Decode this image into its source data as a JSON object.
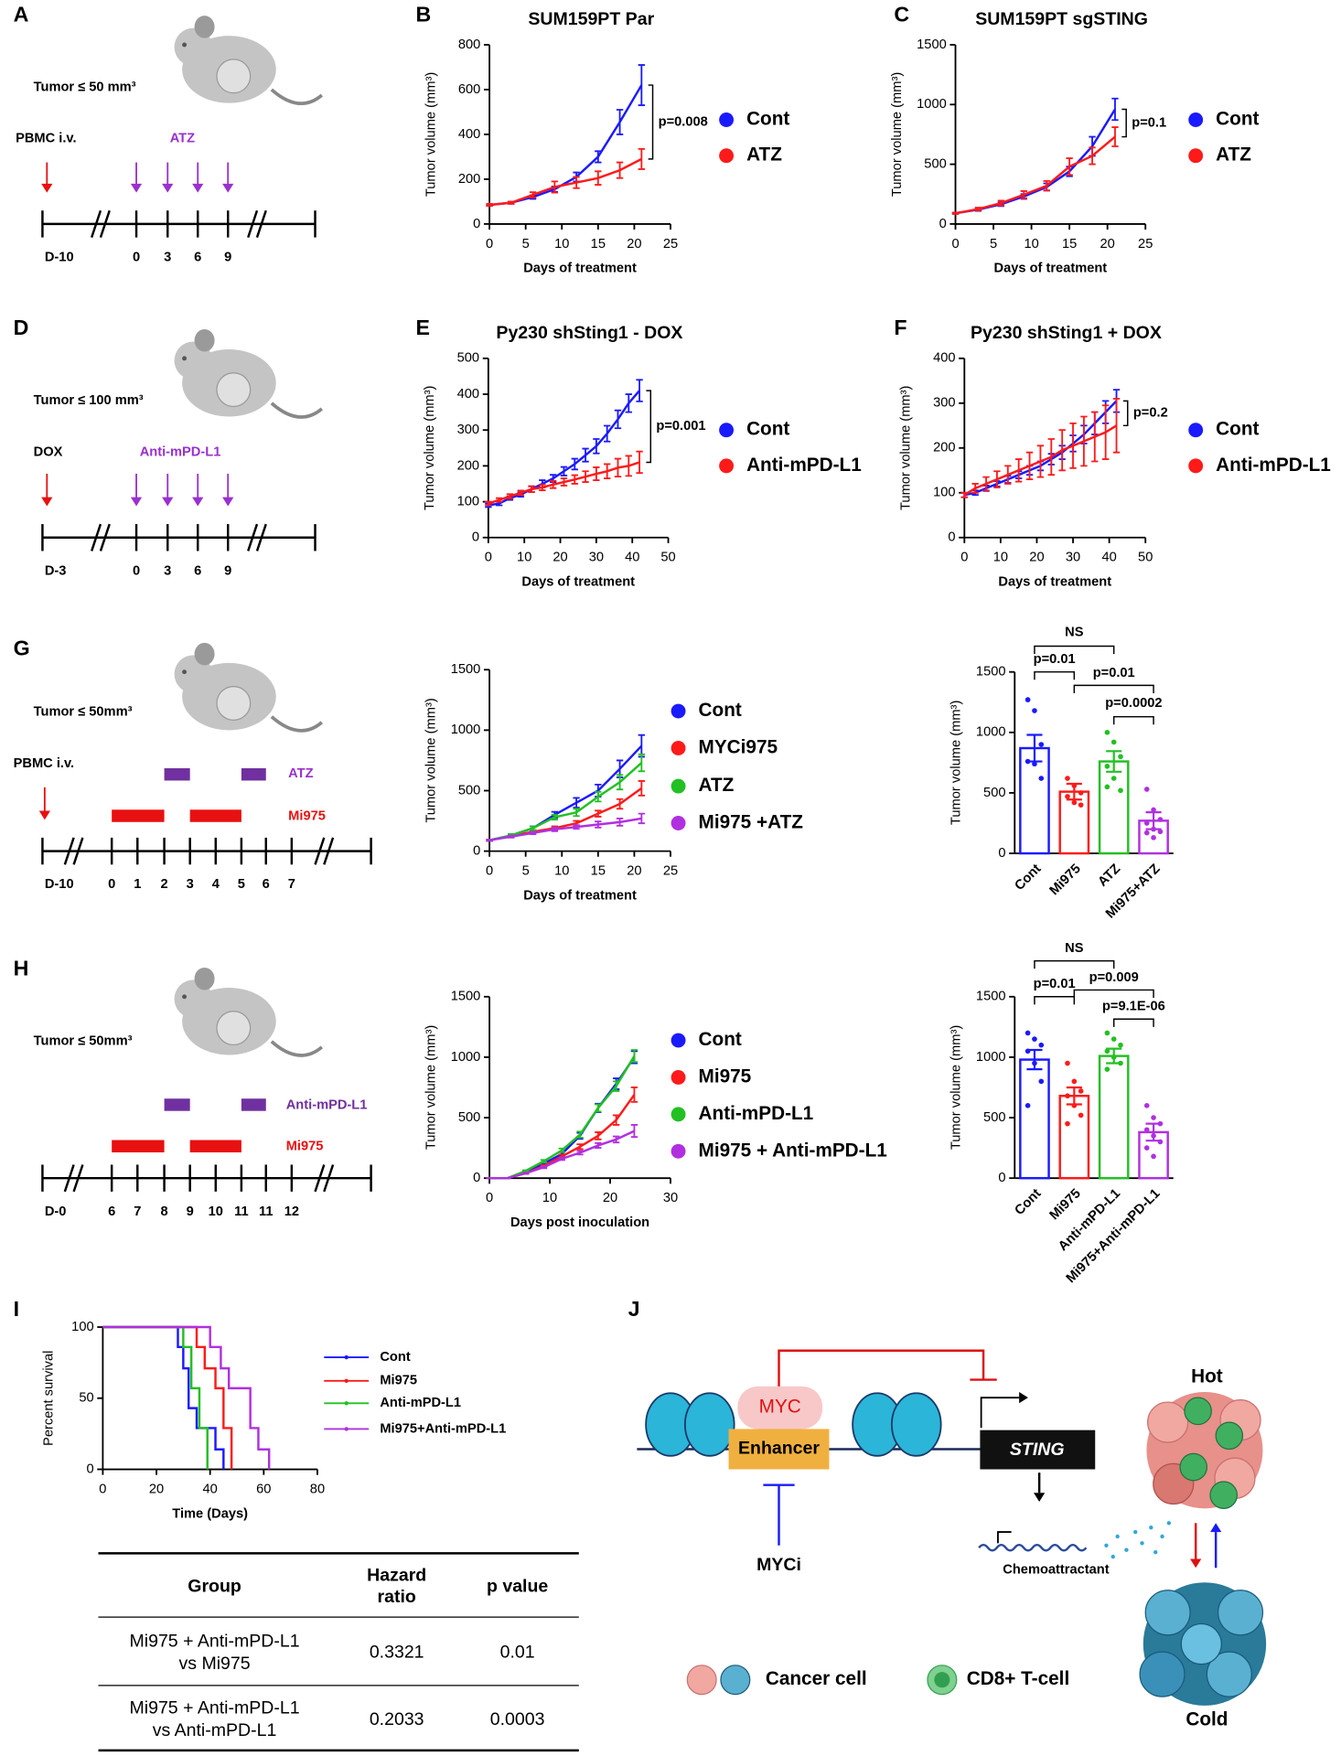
{
  "panels": [
    "A",
    "B",
    "C",
    "D",
    "E",
    "F",
    "G",
    "H",
    "I",
    "J"
  ],
  "timelines": [
    {
      "tumor": "Tumor ≤ 50 mm³",
      "labels": [
        "PBMC i.v.",
        "ATZ"
      ],
      "ticks": [
        "D-10",
        "0",
        "3",
        "6",
        "9"
      ]
    },
    {
      "tumor": "Tumor ≤ 100 mm³",
      "labels": [
        "DOX",
        "Anti-mPD-L1"
      ],
      "ticks": [
        "D-3",
        "0",
        "3",
        "6",
        "9"
      ]
    },
    {
      "tumor": "Tumor ≤ 50mm³",
      "labels": [
        "PBMC i.v.",
        "ATZ",
        "Mi975"
      ],
      "ticks": [
        "D-10",
        "0",
        "1",
        "2",
        "3",
        "4",
        "5",
        "6",
        "7"
      ]
    },
    {
      "tumor": "Tumor ≤ 50mm³",
      "labels": [
        "Anti-mPD-L1",
        "Mi975"
      ],
      "ticks": [
        "D-0",
        "6",
        "7",
        "8",
        "9",
        "10",
        "11",
        "11",
        "12"
      ]
    }
  ],
  "chart_data": [
    {
      "type": "line",
      "title": "SUM159PT Par",
      "x_label": "Days of treatment",
      "y_label": "Tumor volume (mm³)",
      "x": [
        0,
        3,
        6,
        9,
        12,
        15,
        18,
        21
      ],
      "xlim": [
        0,
        25
      ],
      "xticks": [
        0,
        5,
        10,
        15,
        20,
        25
      ],
      "ylim": [
        0,
        800
      ],
      "yticks": [
        0,
        200,
        400,
        600,
        800
      ],
      "series": [
        {
          "name": "Cont",
          "color": "#1a1aff",
          "values": [
            85,
            95,
            120,
            155,
            210,
            300,
            455,
            620
          ],
          "errors": [
            4,
            5,
            8,
            12,
            20,
            25,
            55,
            90
          ]
        },
        {
          "name": "ATZ",
          "color": "#ff1a1a",
          "values": [
            85,
            95,
            130,
            165,
            185,
            205,
            240,
            290
          ],
          "errors": [
            4,
            5,
            12,
            25,
            25,
            30,
            35,
            45
          ]
        }
      ],
      "annotations": [
        "p=0.008"
      ]
    },
    {
      "type": "line",
      "title": "SUM159PT sgSTING",
      "x_label": "Days of treatment",
      "y_label": "Tumor volume (mm³)",
      "x": [
        0,
        3,
        6,
        9,
        12,
        15,
        18,
        21
      ],
      "xlim": [
        0,
        25
      ],
      "xticks": [
        0,
        5,
        10,
        15,
        20,
        25
      ],
      "ylim": [
        0,
        1500
      ],
      "yticks": [
        0,
        500,
        1000,
        1500
      ],
      "series": [
        {
          "name": "Cont",
          "color": "#1a1aff",
          "values": [
            90,
            120,
            165,
            230,
            310,
            440,
            650,
            960
          ],
          "errors": [
            5,
            10,
            15,
            20,
            30,
            40,
            80,
            90
          ]
        },
        {
          "name": "ATZ",
          "color": "#ff1a1a",
          "values": [
            90,
            125,
            175,
            245,
            320,
            480,
            570,
            730
          ],
          "errors": [
            5,
            12,
            20,
            30,
            40,
            70,
            70,
            80
          ]
        }
      ],
      "annotations": [
        "p=0.1"
      ]
    },
    {
      "type": "line",
      "title": "Py230 shSting1 - DOX",
      "x_label": "Days of treatment",
      "y_label": "Tumor volume (mm³)",
      "x": [
        0,
        3,
        6,
        9,
        12,
        15,
        18,
        21,
        24,
        27,
        30,
        33,
        36,
        39,
        42
      ],
      "xlim": [
        0,
        50
      ],
      "xticks": [
        0,
        10,
        20,
        30,
        40,
        50
      ],
      "ylim": [
        0,
        500
      ],
      "yticks": [
        0,
        100,
        200,
        300,
        400,
        500
      ],
      "series": [
        {
          "name": "Cont",
          "color": "#1a1aff",
          "values": [
            90,
            95,
            110,
            120,
            135,
            150,
            165,
            185,
            205,
            230,
            255,
            290,
            330,
            375,
            410
          ],
          "errors": [
            5,
            5,
            5,
            6,
            8,
            10,
            10,
            12,
            15,
            18,
            20,
            22,
            25,
            25,
            30
          ]
        },
        {
          "name": "Anti-mPD-L1",
          "color": "#ff1a1a",
          "values": [
            95,
            105,
            115,
            125,
            135,
            140,
            148,
            155,
            162,
            170,
            178,
            185,
            195,
            200,
            210
          ],
          "errors": [
            5,
            5,
            6,
            6,
            8,
            8,
            10,
            10,
            12,
            15,
            18,
            20,
            25,
            28,
            30
          ]
        }
      ],
      "annotations": [
        "p=0.001"
      ]
    },
    {
      "type": "line",
      "title": "Py230 shSting1 + DOX",
      "x_label": "Days of treatment",
      "y_label": "Tumor volume (mm³)",
      "x": [
        0,
        3,
        6,
        9,
        12,
        15,
        18,
        21,
        24,
        27,
        30,
        33,
        36,
        39,
        42
      ],
      "xlim": [
        0,
        50
      ],
      "xticks": [
        0,
        10,
        20,
        30,
        40,
        50
      ],
      "ylim": [
        0,
        400
      ],
      "yticks": [
        0,
        100,
        200,
        300,
        400
      ],
      "series": [
        {
          "name": "Cont",
          "color": "#1a1aff",
          "values": [
            95,
            100,
            110,
            120,
            130,
            140,
            150,
            160,
            175,
            190,
            210,
            230,
            255,
            280,
            305
          ],
          "errors": [
            5,
            5,
            6,
            6,
            8,
            8,
            10,
            10,
            12,
            15,
            18,
            20,
            25,
            25,
            25
          ]
        },
        {
          "name": "Anti-mPD-L1",
          "color": "#ff1a1a",
          "values": [
            95,
            110,
            120,
            130,
            140,
            150,
            160,
            170,
            180,
            195,
            205,
            215,
            225,
            235,
            250
          ],
          "errors": [
            5,
            10,
            15,
            18,
            20,
            25,
            30,
            35,
            40,
            45,
            50,
            55,
            55,
            60,
            60
          ]
        }
      ],
      "annotations": [
        "p=0.2"
      ]
    },
    {
      "type": "line",
      "x_label": "Days of treatment",
      "y_label": "Tumor volume (mm³)",
      "x": [
        0,
        3,
        6,
        9,
        12,
        15,
        18,
        21
      ],
      "xlim": [
        0,
        25
      ],
      "xticks": [
        0,
        5,
        10,
        15,
        20,
        25
      ],
      "ylim": [
        0,
        1500
      ],
      "yticks": [
        0,
        500,
        1000,
        1500
      ],
      "series": [
        {
          "name": "Cont",
          "color": "#1a1aff",
          "values": [
            90,
            130,
            190,
            300,
            400,
            500,
            680,
            870
          ],
          "errors": [
            5,
            10,
            15,
            25,
            40,
            50,
            70,
            90
          ]
        },
        {
          "name": "MYCi975",
          "color": "#ff1a1a",
          "values": [
            90,
            125,
            160,
            190,
            230,
            310,
            390,
            520
          ],
          "errors": [
            5,
            8,
            10,
            15,
            20,
            25,
            40,
            60
          ]
        },
        {
          "name": "ATZ",
          "color": "#22c022",
          "values": [
            90,
            130,
            190,
            280,
            320,
            450,
            570,
            730
          ],
          "errors": [
            5,
            10,
            15,
            20,
            30,
            40,
            60,
            70
          ]
        },
        {
          "name": "Mi975 +ATZ",
          "color": "#b030e0",
          "values": [
            90,
            120,
            150,
            180,
            200,
            220,
            240,
            270
          ],
          "errors": [
            5,
            8,
            10,
            15,
            15,
            25,
            30,
            40
          ]
        }
      ]
    },
    {
      "type": "bar",
      "y_label": "Tumor volume (mm³)",
      "categories": [
        "Cont",
        "Mi975",
        "ATZ",
        "Mi975+ATZ"
      ],
      "colors": [
        "#1a1aff",
        "#ff1a1a",
        "#22c022",
        "#b030e0"
      ],
      "values": [
        870,
        510,
        760,
        270
      ],
      "errors": [
        110,
        65,
        85,
        70
      ],
      "points": [
        [
          1270,
          1180,
          900,
          760,
          740,
          620
        ],
        [
          620,
          560,
          500,
          470,
          420,
          400
        ],
        [
          1000,
          920,
          800,
          720,
          620,
          520,
          550
        ],
        [
          530,
          360,
          280,
          250,
          200,
          180,
          170,
          130
        ]
      ],
      "ylim": [
        0,
        1500
      ],
      "yticks": [
        0,
        500,
        1000,
        1500
      ],
      "annotations": [
        "NS",
        "p=0.01",
        "p=0.01",
        "p=0.0002"
      ]
    },
    {
      "type": "line",
      "x_label": "Days post inoculation",
      "y_label": "Tumor volume (mm³)",
      "x": [
        0,
        3,
        6,
        9,
        12,
        15,
        18,
        21,
        24
      ],
      "xlim": [
        0,
        30
      ],
      "xticks": [
        0,
        10,
        20,
        30
      ],
      "ylim": [
        0,
        1500
      ],
      "yticks": [
        0,
        500,
        1000,
        1500
      ],
      "series": [
        {
          "name": "Cont",
          "color": "#1a1aff",
          "values": [
            0,
            0,
            50,
            120,
            200,
            350,
            580,
            780,
            1000
          ],
          "errors": [
            0,
            0,
            5,
            10,
            15,
            25,
            35,
            45,
            50
          ]
        },
        {
          "name": "Mi975",
          "color": "#ff1a1a",
          "values": [
            0,
            0,
            40,
            100,
            180,
            260,
            350,
            480,
            690
          ],
          "errors": [
            0,
            0,
            5,
            10,
            15,
            20,
            30,
            40,
            60
          ]
        },
        {
          "name": "Anti-mPD-L1",
          "color": "#22c022",
          "values": [
            0,
            0,
            60,
            140,
            230,
            360,
            580,
            760,
            1010
          ],
          "errors": [
            0,
            0,
            5,
            10,
            15,
            25,
            30,
            40,
            50
          ]
        },
        {
          "name": "Mi975 + Anti-mPD-L1",
          "color": "#b030e0",
          "values": [
            0,
            0,
            40,
            90,
            160,
            210,
            270,
            320,
            390
          ],
          "errors": [
            0,
            0,
            5,
            8,
            10,
            15,
            20,
            25,
            50
          ]
        }
      ]
    },
    {
      "type": "bar",
      "y_label": "Tumor volume (mm³)",
      "categories": [
        "Cont",
        "Mi975",
        "Anti-mPD-L1",
        "Mi975+Anti-mPD-L1"
      ],
      "colors": [
        "#1a1aff",
        "#ff1a1a",
        "#22c022",
        "#b030e0"
      ],
      "values": [
        980,
        680,
        1010,
        380
      ],
      "errors": [
        80,
        70,
        60,
        70
      ],
      "points": [
        [
          1200,
          1150,
          1100,
          1050,
          950,
          800,
          600
        ],
        [
          950,
          800,
          720,
          680,
          600,
          520,
          450
        ],
        [
          1200,
          1150,
          1100,
          1050,
          1000,
          950,
          900
        ],
        [
          600,
          500,
          450,
          400,
          350,
          300,
          250,
          180
        ]
      ],
      "ylim": [
        0,
        1500
      ],
      "yticks": [
        0,
        500,
        1000,
        1500
      ],
      "annotations": [
        "NS",
        "p=0.01",
        "p=0.009",
        "p=9.1E-06"
      ]
    },
    {
      "type": "line",
      "step": true,
      "x_label": "Time (Days)",
      "y_label": "Percent survival",
      "xlim": [
        0,
        80
      ],
      "xticks": [
        0,
        20,
        40,
        60,
        80
      ],
      "ylim": [
        0,
        100
      ],
      "yticks": [
        0,
        50,
        100
      ],
      "series": [
        {
          "name": "Cont",
          "color": "#1a1aff",
          "x": [
            0,
            28,
            30,
            32,
            35,
            42,
            45
          ],
          "values": [
            100,
            86,
            71,
            43,
            29,
            14,
            0
          ]
        },
        {
          "name": "Mi975",
          "color": "#ff1a1a",
          "x": [
            0,
            35,
            38,
            42,
            45,
            48
          ],
          "values": [
            100,
            86,
            71,
            57,
            29,
            0
          ]
        },
        {
          "name": "Anti-mPD-L1",
          "color": "#22c022",
          "x": [
            0,
            30,
            33,
            36,
            39
          ],
          "values": [
            100,
            86,
            57,
            29,
            0
          ]
        },
        {
          "name": "Mi975+Anti-mPD-L1",
          "color": "#b030e0",
          "x": [
            0,
            40,
            44,
            47,
            55,
            58,
            62
          ],
          "values": [
            100,
            86,
            71,
            57,
            29,
            14,
            0
          ]
        }
      ]
    }
  ],
  "table": {
    "header": [
      [
        "Group"
      ],
      [
        "Hazard",
        "ratio"
      ],
      [
        "p value"
      ]
    ],
    "rows": [
      [
        [
          "Mi975 + Anti-mPD-L1",
          "vs Mi975"
        ],
        0.3321,
        0.01
      ],
      [
        [
          "Mi975 + Anti-mPD-L1",
          "vs Anti-mPD-L1"
        ],
        0.2033,
        0.0003
      ]
    ]
  },
  "schematic": {
    "myc": "MYC",
    "enhancer": "Enhancer",
    "sting": "STING",
    "myci": "MYCi",
    "chemo": "Chemoattractant",
    "hot": "Hot",
    "cold": "Cold",
    "cancer": "Cancer cell",
    "tcell": "CD8+ T-cell"
  }
}
